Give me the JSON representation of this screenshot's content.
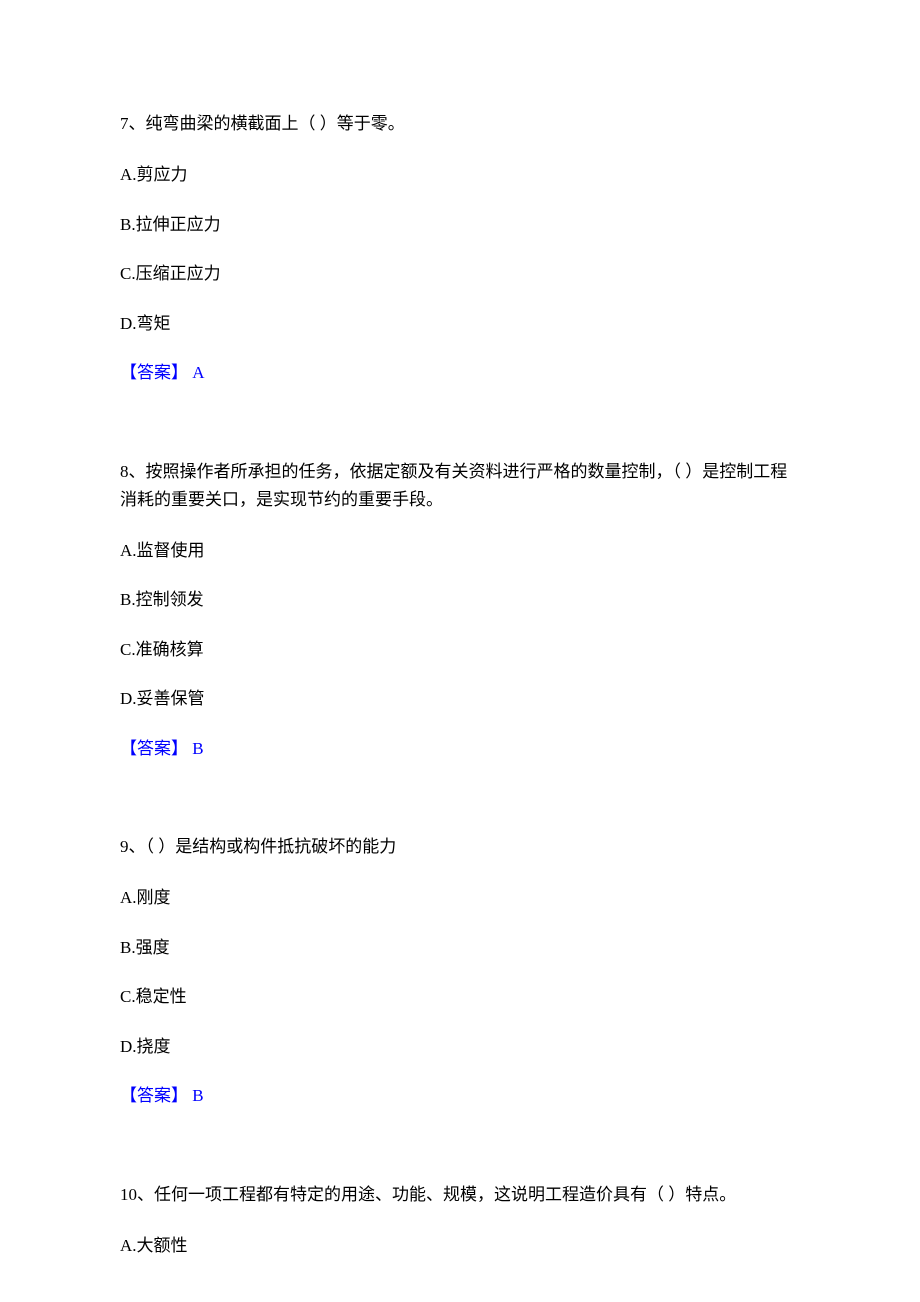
{
  "questions": [
    {
      "number": "7",
      "text": "7、纯弯曲梁的横截面上（ ）等于零。",
      "options": {
        "a": "A.剪应力",
        "b": "B.拉伸正应力",
        "c": "C.压缩正应力",
        "d": "D.弯矩"
      },
      "answer_label": "【答案】",
      "answer_value": " A"
    },
    {
      "number": "8",
      "text": "8、按照操作者所承担的任务，依据定额及有关资料进行严格的数量控制，（ ）是控制工程消耗的重要关口，是实现节约的重要手段。",
      "options": {
        "a": "A.监督使用",
        "b": "B.控制领发",
        "c": "C.准确核算",
        "d": "D.妥善保管"
      },
      "answer_label": "【答案】",
      "answer_value": " B"
    },
    {
      "number": "9",
      "text": "9、（ ）是结构或构件抵抗破坏的能力",
      "options": {
        "a": "A.刚度",
        "b": "B.强度",
        "c": "C.稳定性",
        "d": "D.挠度"
      },
      "answer_label": "【答案】",
      "answer_value": " B"
    },
    {
      "number": "10",
      "text": "10、任何一项工程都有特定的用途、功能、规模，这说明工程造价具有（ ）特点。",
      "options": {
        "a": "A.大额性"
      }
    }
  ],
  "colors": {
    "text": "#000000",
    "answer": "#0000ff",
    "background": "#ffffff"
  },
  "typography": {
    "font_family": "SimSun",
    "font_size": 17,
    "line_height": 1.65
  }
}
